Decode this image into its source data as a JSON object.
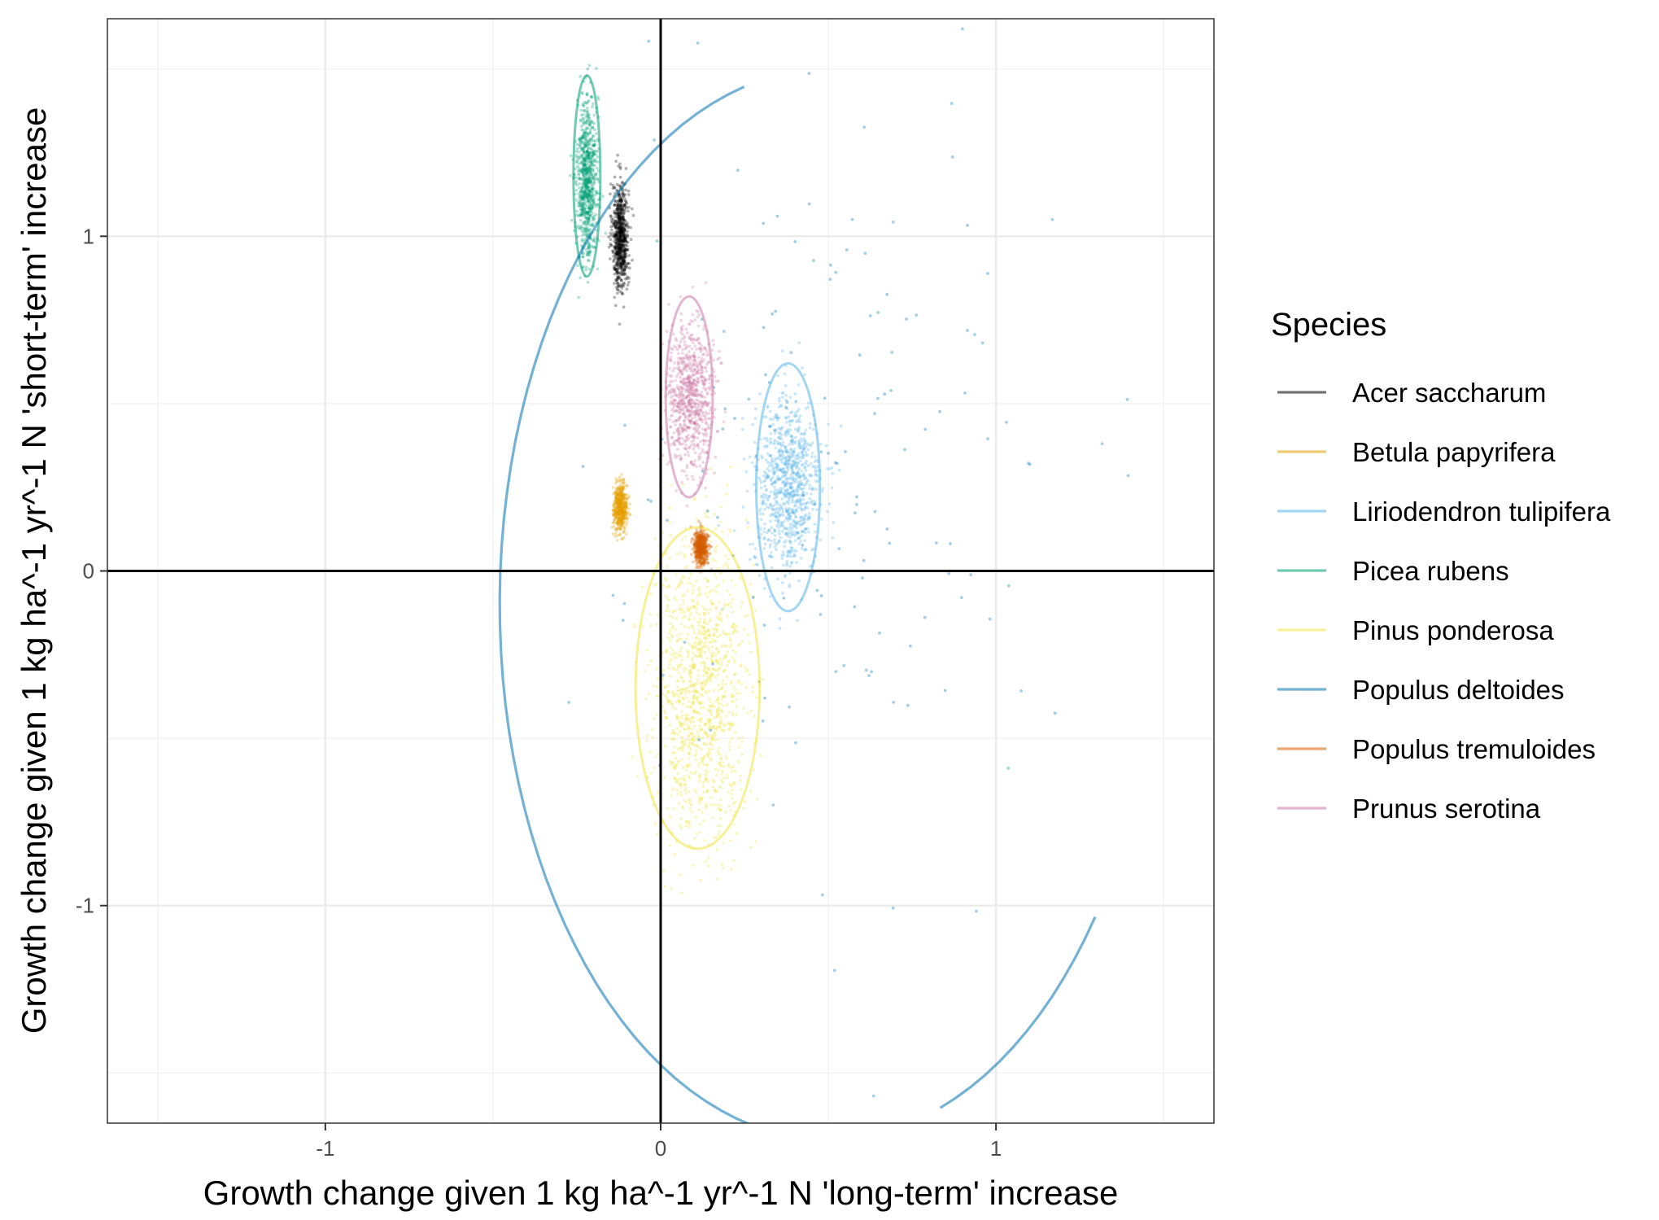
{
  "chart_data": {
    "type": "scatter",
    "title": "",
    "xlabel": "Growth change given 1 kg ha^-1 yr^-1 N 'long-term' increase",
    "ylabel": "Growth change given 1 kg ha^-1 yr^-1 N 'short-term' increase",
    "xlim": [
      -1.65,
      1.65
    ],
    "ylim": [
      -1.65,
      1.65
    ],
    "x_ticks": [
      -1,
      0,
      1
    ],
    "x_tick_labels": [
      "-1",
      "0",
      "1"
    ],
    "y_ticks": [
      -1,
      0,
      1
    ],
    "y_tick_labels": [
      "-1",
      "0",
      "1"
    ],
    "grid": true,
    "reference_lines": {
      "x": 0,
      "y": 0
    },
    "legend": {
      "title": "Species",
      "position": "right"
    },
    "series": [
      {
        "name": "Acer saccharum",
        "color": "#000000",
        "x_center": -0.12,
        "y_center": 1.0,
        "x_sd": 0.012,
        "y_sd": 0.08,
        "ellipse": null,
        "n_points": 700
      },
      {
        "name": "Betula papyrifera",
        "color": "#E69F00",
        "x_center": -0.12,
        "y_center": 0.19,
        "x_sd": 0.01,
        "y_sd": 0.035,
        "ellipse": null,
        "n_points": 500
      },
      {
        "name": "Liriodendron tulipifera",
        "color": "#56B4E9",
        "x_center": 0.38,
        "y_center": 0.25,
        "x_sd": 0.05,
        "y_sd": 0.13,
        "ellipse": {
          "cx": 0.38,
          "cy": 0.25,
          "rx": 0.095,
          "ry": 0.37
        },
        "n_points": 900
      },
      {
        "name": "Picea rubens",
        "color": "#009E73",
        "x_center": -0.22,
        "y_center": 1.17,
        "x_sd": 0.015,
        "y_sd": 0.12,
        "ellipse": {
          "cx": -0.22,
          "cy": 1.18,
          "rx": 0.04,
          "ry": 0.3
        },
        "n_points": 800
      },
      {
        "name": "Pinus ponderosa",
        "color": "#F0E442",
        "x_center": 0.12,
        "y_center": -0.35,
        "x_sd": 0.07,
        "y_sd": 0.22,
        "ellipse": {
          "cx": 0.11,
          "cy": -0.35,
          "rx": 0.185,
          "ry": 0.48
        },
        "n_points": 1200
      },
      {
        "name": "Populus deltoides",
        "color": "#0072B2",
        "x_center": 0.5,
        "y_center": 0.3,
        "x_sd": 0.35,
        "y_sd": 0.55,
        "ellipse": {
          "cx": 0.5,
          "cy": -0.1,
          "rx": 0.98,
          "ry": 1.6
        },
        "n_points": 150
      },
      {
        "name": "Populus tremuloides",
        "color": "#D55E00",
        "x_center": 0.12,
        "y_center": 0.07,
        "x_sd": 0.01,
        "y_sd": 0.025,
        "ellipse": null,
        "n_points": 500
      },
      {
        "name": "Prunus serotina",
        "color": "#CC79A7",
        "x_center": 0.09,
        "y_center": 0.52,
        "x_sd": 0.035,
        "y_sd": 0.11,
        "ellipse": {
          "cx": 0.085,
          "cy": 0.52,
          "rx": 0.07,
          "ry": 0.3
        },
        "n_points": 800
      }
    ]
  }
}
